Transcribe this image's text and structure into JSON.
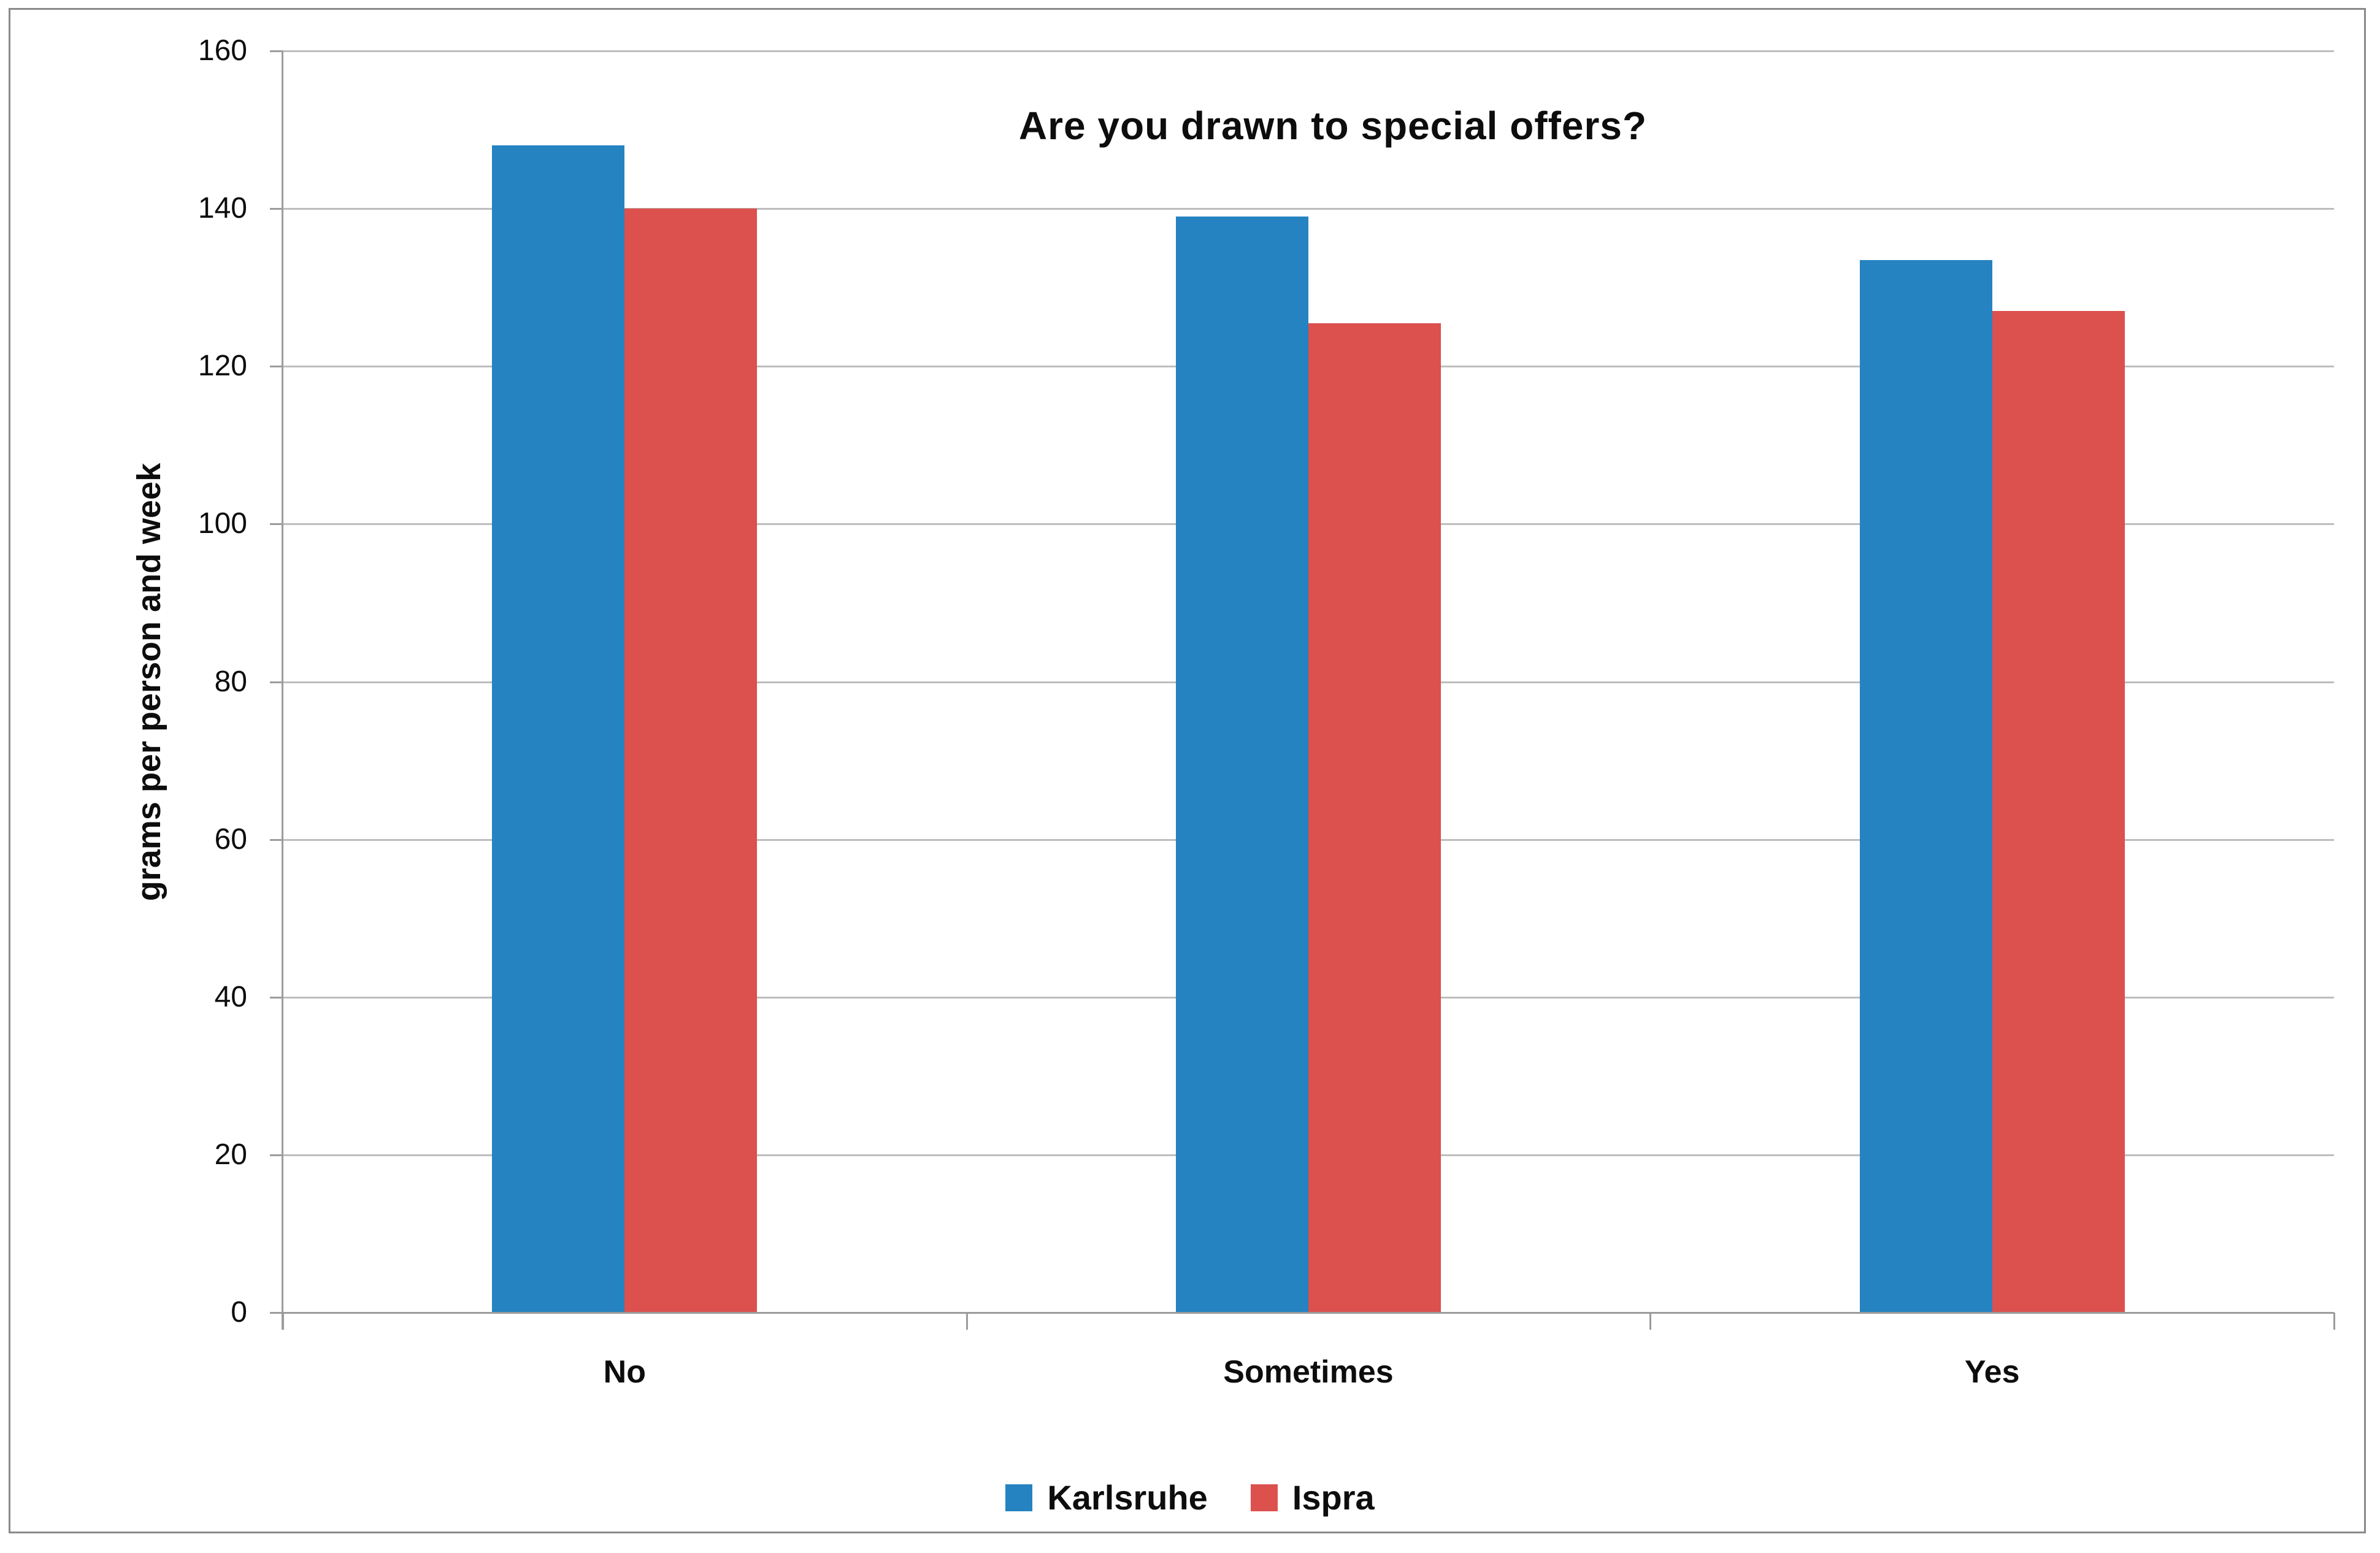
{
  "chart_data": {
    "type": "bar",
    "title": "Are you drawn to special offers?",
    "ylabel": "grams per person and week",
    "xlabel": "",
    "categories": [
      "No",
      "Sometimes",
      "Yes"
    ],
    "series": [
      {
        "name": "Karlsruhe",
        "color": "#2583C1",
        "values": [
          148,
          139,
          133.5
        ]
      },
      {
        "name": "Ispra",
        "color": "#DC504E",
        "values": [
          140,
          125.5,
          127
        ]
      }
    ],
    "ylim": [
      0,
      160
    ],
    "ytick_step": 20,
    "yticks": [
      0,
      20,
      40,
      60,
      80,
      100,
      120,
      140,
      160
    ],
    "grid": "horizontal",
    "legend_position": "bottom-center"
  },
  "styles": {
    "gridline_color": "#BDBDBD",
    "axis_color": "#9C9C9C",
    "border_color": "#8A8A8A",
    "text_color": "#0D0D0D",
    "background": "#FFFFFF"
  }
}
